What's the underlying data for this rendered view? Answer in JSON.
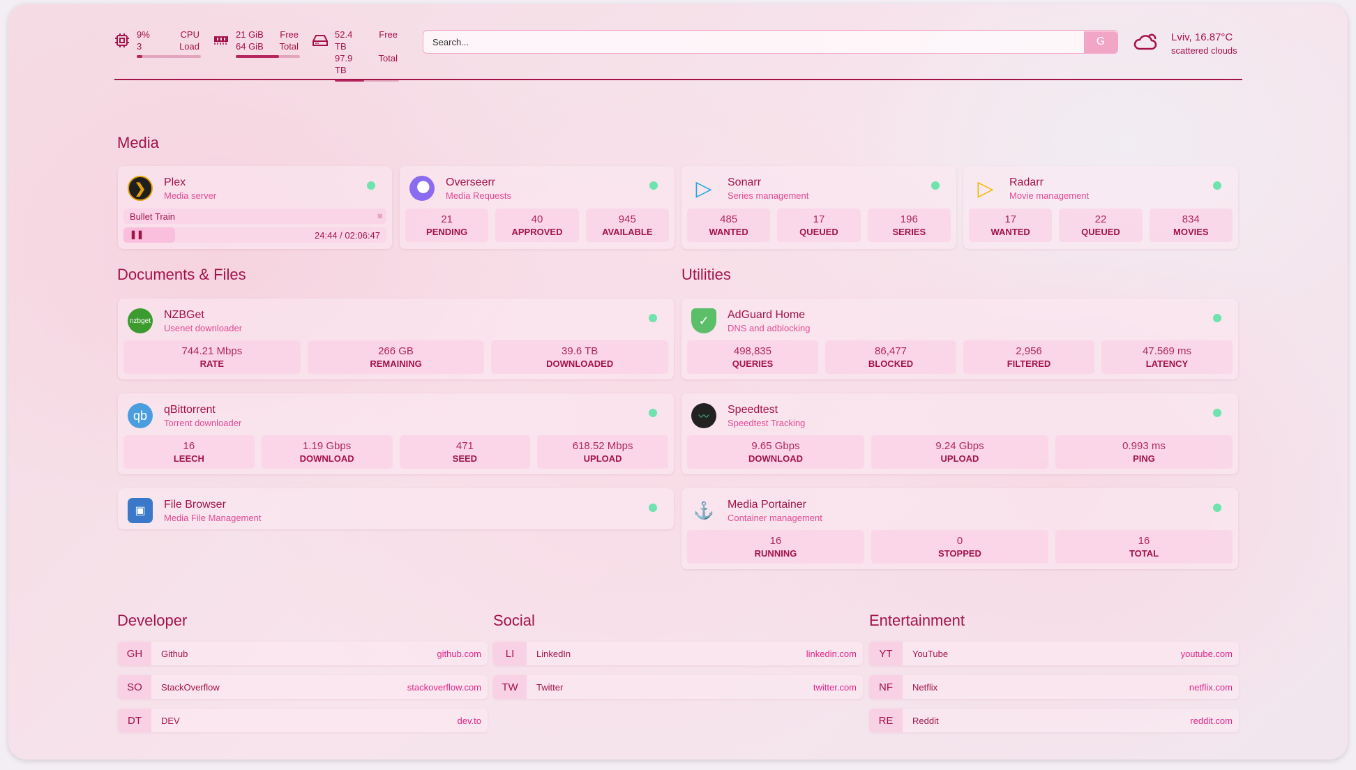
{
  "header": {
    "cpu": {
      "icon": "cpu-icon",
      "value": "9%",
      "sub": "3",
      "label1": "CPU",
      "label2": "Load",
      "fill": 0.09
    },
    "memory": {
      "icon": "memory-icon",
      "value": "21 GiB",
      "sub": "64 GiB",
      "label1": "Free",
      "label2": "Total",
      "fill": 0.67
    },
    "disk": {
      "icon": "disk-icon",
      "value": "52.4 TB",
      "sub": "97.9 TB",
      "label1": "Free",
      "label2": "Total",
      "fill": 0.46
    },
    "search": {
      "placeholder": "Search...",
      "button": "G"
    },
    "weather": {
      "icon": "cloud-sun-icon",
      "location": "Lviv, 16.87°C",
      "description": "scattered clouds"
    }
  },
  "sections": {
    "media": "Media",
    "documents": "Documents & Files",
    "utilities": "Utilities",
    "developer": "Developer",
    "social": "Social",
    "entertainment": "Entertainment"
  },
  "media": [
    {
      "title": "Plex",
      "subtitle": "Media server",
      "now_playing": "Bullet Train",
      "time": "24:44 / 02:06:47",
      "progress": 0.195
    },
    {
      "title": "Overseerr",
      "subtitle": "Media Requests",
      "stats": [
        {
          "v": "21",
          "l": "PENDING"
        },
        {
          "v": "40",
          "l": "APPROVED"
        },
        {
          "v": "945",
          "l": "AVAILABLE"
        }
      ]
    },
    {
      "title": "Sonarr",
      "subtitle": "Series management",
      "stats": [
        {
          "v": "485",
          "l": "WANTED"
        },
        {
          "v": "17",
          "l": "QUEUED"
        },
        {
          "v": "196",
          "l": "SERIES"
        }
      ]
    },
    {
      "title": "Radarr",
      "subtitle": "Movie management",
      "stats": [
        {
          "v": "17",
          "l": "WANTED"
        },
        {
          "v": "22",
          "l": "QUEUED"
        },
        {
          "v": "834",
          "l": "MOVIES"
        }
      ]
    }
  ],
  "documents": [
    {
      "title": "NZBGet",
      "subtitle": "Usenet downloader",
      "icon_text": "nzbget",
      "stats": [
        {
          "v": "744.21 Mbps",
          "l": "RATE"
        },
        {
          "v": "266 GB",
          "l": "REMAINING"
        },
        {
          "v": "39.6 TB",
          "l": "DOWNLOADED"
        }
      ]
    },
    {
      "title": "qBittorrent",
      "subtitle": "Torrent downloader",
      "icon_text": "qb",
      "stats": [
        {
          "v": "16",
          "l": "LEECH"
        },
        {
          "v": "1.19 Gbps",
          "l": "DOWNLOAD"
        },
        {
          "v": "471",
          "l": "SEED"
        },
        {
          "v": "618.52 Mbps",
          "l": "UPLOAD"
        }
      ]
    },
    {
      "title": "File Browser",
      "subtitle": "Media File Management"
    }
  ],
  "utilities": [
    {
      "title": "AdGuard Home",
      "subtitle": "DNS and adblocking",
      "stats": [
        {
          "v": "498,835",
          "l": "QUERIES"
        },
        {
          "v": "86,477",
          "l": "BLOCKED"
        },
        {
          "v": "2,956",
          "l": "FILTERED"
        },
        {
          "v": "47.569 ms",
          "l": "LATENCY"
        }
      ]
    },
    {
      "title": "Speedtest",
      "subtitle": "Speedtest Tracking",
      "stats": [
        {
          "v": "9.65 Gbps",
          "l": "DOWNLOAD"
        },
        {
          "v": "9.24 Gbps",
          "l": "UPLOAD"
        },
        {
          "v": "0.993 ms",
          "l": "PING"
        }
      ]
    },
    {
      "title": "Media Portainer",
      "subtitle": "Container management",
      "stats": [
        {
          "v": "16",
          "l": "RUNNING"
        },
        {
          "v": "0",
          "l": "STOPPED"
        },
        {
          "v": "16",
          "l": "TOTAL"
        }
      ]
    }
  ],
  "bookmarks": {
    "developer": [
      {
        "abbr": "GH",
        "name": "Github",
        "url": "github.com"
      },
      {
        "abbr": "SO",
        "name": "StackOverflow",
        "url": "stackoverflow.com"
      },
      {
        "abbr": "DT",
        "name": "DEV",
        "url": "dev.to"
      }
    ],
    "social": [
      {
        "abbr": "LI",
        "name": "LinkedIn",
        "url": "linkedin.com"
      },
      {
        "abbr": "TW",
        "name": "Twitter",
        "url": "twitter.com"
      }
    ],
    "entertainment": [
      {
        "abbr": "YT",
        "name": "YouTube",
        "url": "youtube.com"
      },
      {
        "abbr": "NF",
        "name": "Netflix",
        "url": "netflix.com"
      },
      {
        "abbr": "RE",
        "name": "Reddit",
        "url": "reddit.com"
      }
    ]
  },
  "colors": {
    "accent": "#a3134a",
    "subtitle": "#e44a95",
    "status_online": "#6ee3ad"
  }
}
